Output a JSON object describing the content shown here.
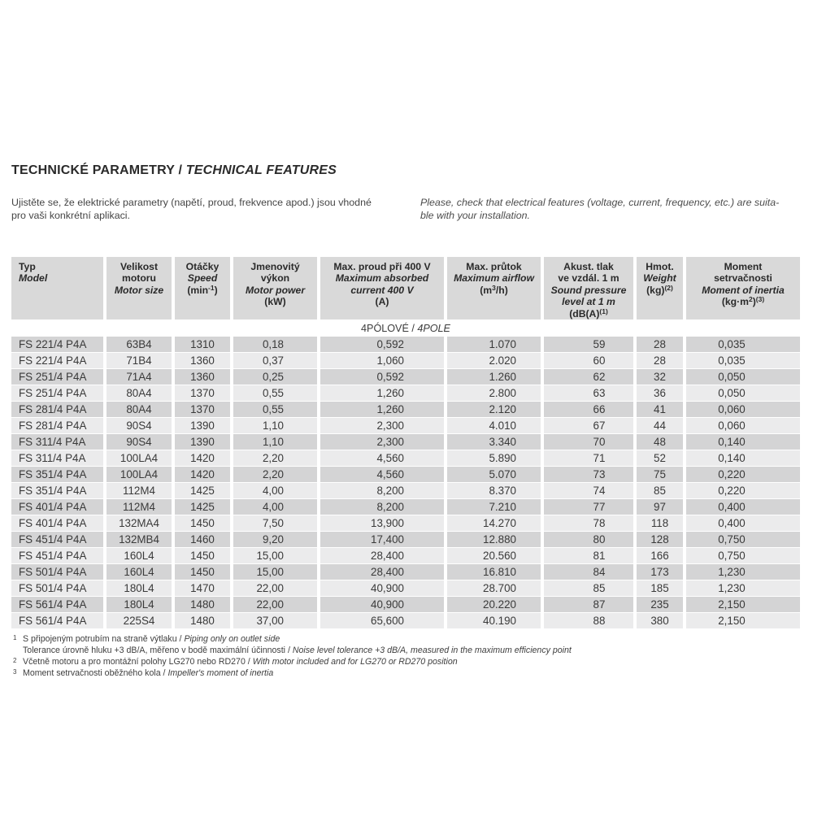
{
  "colors": {
    "header_bg": "#d9d9d9",
    "row_dark": "#d4d4d5",
    "row_light": "#ebebec"
  },
  "page": {
    "title_cz": "TECHNICKÉ PARAMETRY / ",
    "title_en": "TECHNICAL FEATURES",
    "intro_cz": "Ujistěte se, že elektrické parametry (napětí, proud, frekvence apod.) jsou vhodné\npro vaši konkrétní aplikaci.",
    "intro_en": "Please, check that electrical features (voltage, current, frequency, etc.) are suita-\nble with your installation."
  },
  "table": {
    "section_cz": "4PÓLOVÉ / ",
    "section_en": "4POLE",
    "columns": [
      {
        "id": "model",
        "lines": [
          [
            {
              "t": "Typ"
            }
          ],
          [
            {
              "t": "Model",
              "i": 1
            }
          ]
        ]
      },
      {
        "id": "motor-size",
        "lines": [
          [
            {
              "t": "Velikost"
            }
          ],
          [
            {
              "t": "motoru"
            }
          ],
          [
            {
              "t": "Motor size",
              "i": 1
            }
          ]
        ]
      },
      {
        "id": "speed",
        "lines": [
          [
            {
              "t": "Otáčky"
            }
          ],
          [
            {
              "t": "Speed",
              "i": 1
            }
          ],
          [
            {
              "t": "(min"
            },
            {
              "t": "-1",
              "sup": 1
            },
            {
              "t": ")"
            }
          ]
        ]
      },
      {
        "id": "motor-power",
        "lines": [
          [
            {
              "t": "Jmenovitý"
            }
          ],
          [
            {
              "t": "výkon"
            }
          ],
          [
            {
              "t": "Motor power",
              "i": 1
            }
          ],
          [
            {
              "t": "(kW)"
            }
          ]
        ]
      },
      {
        "id": "max-current",
        "lines": [
          [
            {
              "t": "Max. proud při 400 V"
            }
          ],
          [
            {
              "t": "Maximum absorbed",
              "i": 1
            }
          ],
          [
            {
              "t": "current 400 V",
              "i": 1
            }
          ],
          [
            {
              "t": "(A)"
            }
          ]
        ]
      },
      {
        "id": "max-airflow",
        "lines": [
          [
            {
              "t": "Max. průtok"
            }
          ],
          [
            {
              "t": "Maximum airflow",
              "i": 1
            }
          ],
          [
            {
              "t": "(m"
            },
            {
              "t": "3",
              "sup": 1
            },
            {
              "t": "/h)"
            }
          ]
        ]
      },
      {
        "id": "sound-pressure",
        "lines": [
          [
            {
              "t": "Akust. tlak"
            }
          ],
          [
            {
              "t": "ve vzdál. 1 m"
            }
          ],
          [
            {
              "t": "Sound pressure",
              "i": 1
            }
          ],
          [
            {
              "t": "level at 1 m",
              "i": 1
            }
          ],
          [
            {
              "t": "(dB(A)"
            },
            {
              "t": "(1)",
              "sup": 1
            }
          ]
        ]
      },
      {
        "id": "weight",
        "lines": [
          [
            {
              "t": "Hmot."
            }
          ],
          [
            {
              "t": "Weight",
              "i": 1
            }
          ],
          [
            {
              "t": "(kg)"
            },
            {
              "t": "(2)",
              "sup": 1
            }
          ]
        ]
      },
      {
        "id": "moment-of-inertia",
        "lines": [
          [
            {
              "t": "Moment"
            }
          ],
          [
            {
              "t": "setrvačnosti"
            }
          ],
          [
            {
              "t": "Moment of inertia",
              "i": 1
            }
          ],
          [
            {
              "t": "(kg·m"
            },
            {
              "t": "2",
              "sup": 1
            },
            {
              "t": ")"
            },
            {
              "t": "(3)",
              "sup": 1
            }
          ]
        ]
      }
    ],
    "rows": [
      [
        "FS 221/4 P4A",
        "63B4",
        "1310",
        "0,18",
        "0,592",
        "1.070",
        "59",
        "28",
        "0,035"
      ],
      [
        "FS 221/4 P4A",
        "71B4",
        "1360",
        "0,37",
        "1,060",
        "2.020",
        "60",
        "28",
        "0,035"
      ],
      [
        "FS 251/4 P4A",
        "71A4",
        "1360",
        "0,25",
        "0,592",
        "1.260",
        "62",
        "32",
        "0,050"
      ],
      [
        "FS 251/4 P4A",
        "80A4",
        "1370",
        "0,55",
        "1,260",
        "2.800",
        "63",
        "36",
        "0,050"
      ],
      [
        "FS 281/4 P4A",
        "80A4",
        "1370",
        "0,55",
        "1,260",
        "2.120",
        "66",
        "41",
        "0,060"
      ],
      [
        "FS 281/4 P4A",
        "90S4",
        "1390",
        "1,10",
        "2,300",
        "4.010",
        "67",
        "44",
        "0,060"
      ],
      [
        "FS 311/4 P4A",
        "90S4",
        "1390",
        "1,10",
        "2,300",
        "3.340",
        "70",
        "48",
        "0,140"
      ],
      [
        "FS 311/4 P4A",
        "100LA4",
        "1420",
        "2,20",
        "4,560",
        "5.890",
        "71",
        "52",
        "0,140"
      ],
      [
        "FS 351/4 P4A",
        "100LA4",
        "1420",
        "2,20",
        "4,560",
        "5.070",
        "73",
        "75",
        "0,220"
      ],
      [
        "FS 351/4 P4A",
        "112M4",
        "1425",
        "4,00",
        "8,200",
        "8.370",
        "74",
        "85",
        "0,220"
      ],
      [
        "FS 401/4 P4A",
        "112M4",
        "1425",
        "4,00",
        "8,200",
        "7.210",
        "77",
        "97",
        "0,400"
      ],
      [
        "FS 401/4 P4A",
        "132MA4",
        "1450",
        "7,50",
        "13,900",
        "14.270",
        "78",
        "118",
        "0,400"
      ],
      [
        "FS 451/4 P4A",
        "132MB4",
        "1460",
        "9,20",
        "17,400",
        "12.880",
        "80",
        "128",
        "0,750"
      ],
      [
        "FS 451/4 P4A",
        "160L4",
        "1450",
        "15,00",
        "28,400",
        "20.560",
        "81",
        "166",
        "0,750"
      ],
      [
        "FS 501/4 P4A",
        "160L4",
        "1450",
        "15,00",
        "28,400",
        "16.810",
        "84",
        "173",
        "1,230"
      ],
      [
        "FS 501/4 P4A",
        "180L4",
        "1470",
        "22,00",
        "40,900",
        "28.700",
        "85",
        "185",
        "1,230"
      ],
      [
        "FS 561/4 P4A",
        "180L4",
        "1480",
        "22,00",
        "40,900",
        "20.220",
        "87",
        "235",
        "2,150"
      ],
      [
        "FS 561/4 P4A",
        "225S4",
        "1480",
        "37,00",
        "65,600",
        "40.190",
        "88",
        "380",
        "2,150"
      ]
    ]
  },
  "footnotes": [
    {
      "marker": "1",
      "cz": "S připojeným potrubím na straně výtlaku",
      "sep": " / ",
      "en": "Piping only on outlet side"
    },
    {
      "marker": "",
      "cz": "Tolerance úrovně hluku +3 dB/A, měřeno v bodě maximální účinnosti",
      "sep": " / ",
      "en": "Noise level tolerance +3 dB/A, measured in the maximum efficiency point"
    },
    {
      "marker": "2",
      "cz": "Včetně motoru a pro montážní polohy LG270 nebo RD270",
      "sep": " / ",
      "en": "With motor included and for LG270 or RD270 position"
    },
    {
      "marker": "3",
      "cz": "Moment setrvačnosti oběžného kola",
      "sep": " / ",
      "en": "Impeller's moment of inertia"
    }
  ]
}
